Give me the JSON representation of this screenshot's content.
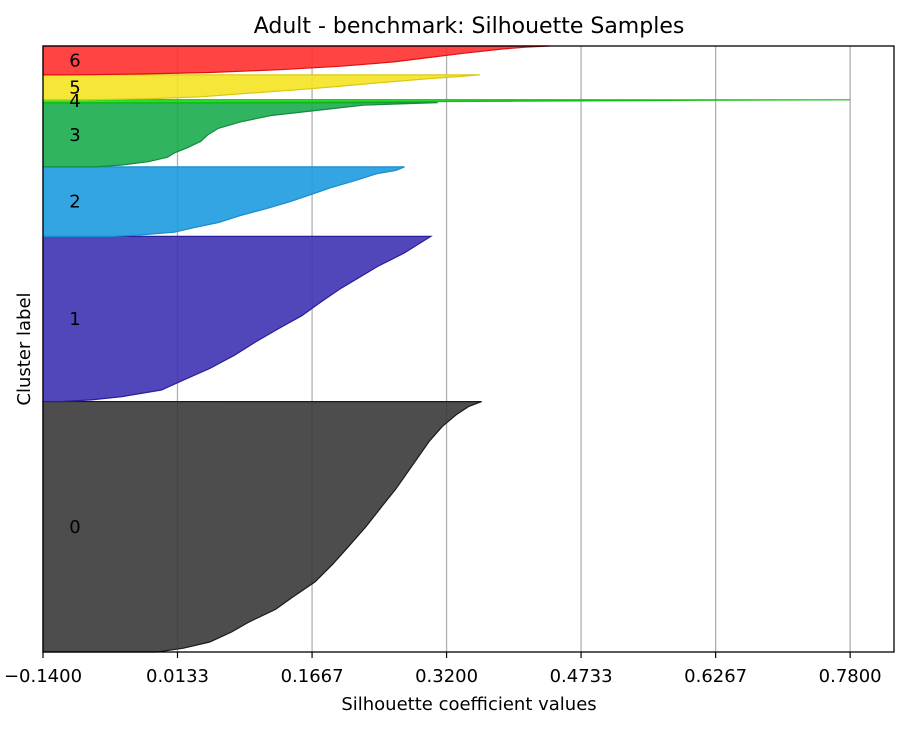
{
  "chart_data": {
    "type": "area",
    "title": "Adult - benchmark: Silhouette Samples",
    "xlabel": "Silhouette coefficient values",
    "ylabel": "Cluster label",
    "xlim": [
      -0.14,
      0.83
    ],
    "xticks": [
      "-0.1400",
      "0.0133",
      "0.1667",
      "0.3200",
      "0.4733",
      "0.6267",
      "0.7800"
    ],
    "xtick_values": [
      -0.14,
      0.0133,
      0.1667,
      0.32,
      0.4733,
      0.6267,
      0.78
    ],
    "grid": "vertical",
    "y_orientation": "cluster 0 at bottom, cluster 6 at top",
    "clusters": [
      {
        "label": "0",
        "color": "#3a3a3a",
        "edge": "#1a1a1a",
        "size": 1910,
        "profile": [
          [
            0,
            0.36
          ],
          [
            0.02,
            0.345
          ],
          [
            0.05,
            0.332
          ],
          [
            0.1,
            0.315
          ],
          [
            0.16,
            0.3
          ],
          [
            0.22,
            0.288
          ],
          [
            0.28,
            0.276
          ],
          [
            0.35,
            0.262
          ],
          [
            0.42,
            0.246
          ],
          [
            0.5,
            0.228
          ],
          [
            0.58,
            0.208
          ],
          [
            0.65,
            0.19
          ],
          [
            0.72,
            0.17
          ],
          [
            0.78,
            0.145
          ],
          [
            0.83,
            0.125
          ],
          [
            0.88,
            0.095
          ],
          [
            0.92,
            0.075
          ],
          [
            0.96,
            0.05
          ],
          [
            0.985,
            0.02
          ],
          [
            1.0,
            -0.01
          ]
        ]
      },
      {
        "label": "1",
        "color": "#3f32b4",
        "edge": "#2a1f9a",
        "size": 1260,
        "profile": [
          [
            0,
            0.302
          ],
          [
            0.04,
            0.29
          ],
          [
            0.1,
            0.272
          ],
          [
            0.18,
            0.242
          ],
          [
            0.25,
            0.22
          ],
          [
            0.32,
            0.198
          ],
          [
            0.4,
            0.176
          ],
          [
            0.48,
            0.155
          ],
          [
            0.56,
            0.128
          ],
          [
            0.64,
            0.102
          ],
          [
            0.72,
            0.078
          ],
          [
            0.8,
            0.05
          ],
          [
            0.87,
            0.02
          ],
          [
            0.93,
            -0.005
          ],
          [
            0.97,
            -0.05
          ],
          [
            0.99,
            -0.085
          ],
          [
            1.0,
            -0.12
          ]
        ]
      },
      {
        "label": "2",
        "color": "#1e9be0",
        "edge": "#1a8cd0",
        "size": 530,
        "profile": [
          [
            0,
            0.272
          ],
          [
            0.05,
            0.262
          ],
          [
            0.1,
            0.24
          ],
          [
            0.2,
            0.215
          ],
          [
            0.3,
            0.188
          ],
          [
            0.4,
            0.165
          ],
          [
            0.5,
            0.142
          ],
          [
            0.6,
            0.115
          ],
          [
            0.7,
            0.085
          ],
          [
            0.8,
            0.06
          ],
          [
            0.88,
            0.03
          ],
          [
            0.94,
            0.01
          ],
          [
            0.98,
            -0.03
          ],
          [
            1.0,
            -0.06
          ]
        ]
      },
      {
        "label": "3",
        "color": "#1aac4f",
        "edge": "#138a3f",
        "size": 490,
        "profile": [
          [
            0,
            0.31
          ],
          [
            0.04,
            0.225
          ],
          [
            0.1,
            0.185
          ],
          [
            0.2,
            0.12
          ],
          [
            0.3,
            0.085
          ],
          [
            0.4,
            0.06
          ],
          [
            0.5,
            0.048
          ],
          [
            0.6,
            0.04
          ],
          [
            0.7,
            0.025
          ],
          [
            0.78,
            0.01
          ],
          [
            0.85,
            0.002
          ],
          [
            0.92,
            -0.02
          ],
          [
            0.97,
            -0.05
          ],
          [
            1.0,
            -0.08
          ]
        ]
      },
      {
        "label": "4",
        "color": "#22e022",
        "edge": "#10c010",
        "size": 22,
        "profile": [
          [
            0,
            0.78
          ],
          [
            0.2,
            0.6
          ],
          [
            0.5,
            0.4
          ],
          [
            0.8,
            0.18
          ],
          [
            1.0,
            -0.1
          ]
        ]
      },
      {
        "label": "5",
        "color": "#f4e321",
        "edge": "#d8c810",
        "size": 190,
        "profile": [
          [
            0,
            0.358
          ],
          [
            0.05,
            0.34
          ],
          [
            0.15,
            0.3
          ],
          [
            0.3,
            0.25
          ],
          [
            0.45,
            0.2
          ],
          [
            0.6,
            0.15
          ],
          [
            0.75,
            0.09
          ],
          [
            0.88,
            0.04
          ],
          [
            0.96,
            -0.02
          ],
          [
            1.0,
            -0.09
          ]
        ]
      },
      {
        "label": "6",
        "color": "#ff3030",
        "edge": "#e01010",
        "size": 220,
        "profile": [
          [
            0,
            0.437
          ],
          [
            0.04,
            0.41
          ],
          [
            0.1,
            0.385
          ],
          [
            0.25,
            0.34
          ],
          [
            0.4,
            0.3
          ],
          [
            0.55,
            0.26
          ],
          [
            0.7,
            0.2
          ],
          [
            0.82,
            0.13
          ],
          [
            0.92,
            0.05
          ],
          [
            0.97,
            -0.03
          ],
          [
            1.0,
            -0.1
          ]
        ]
      }
    ]
  }
}
